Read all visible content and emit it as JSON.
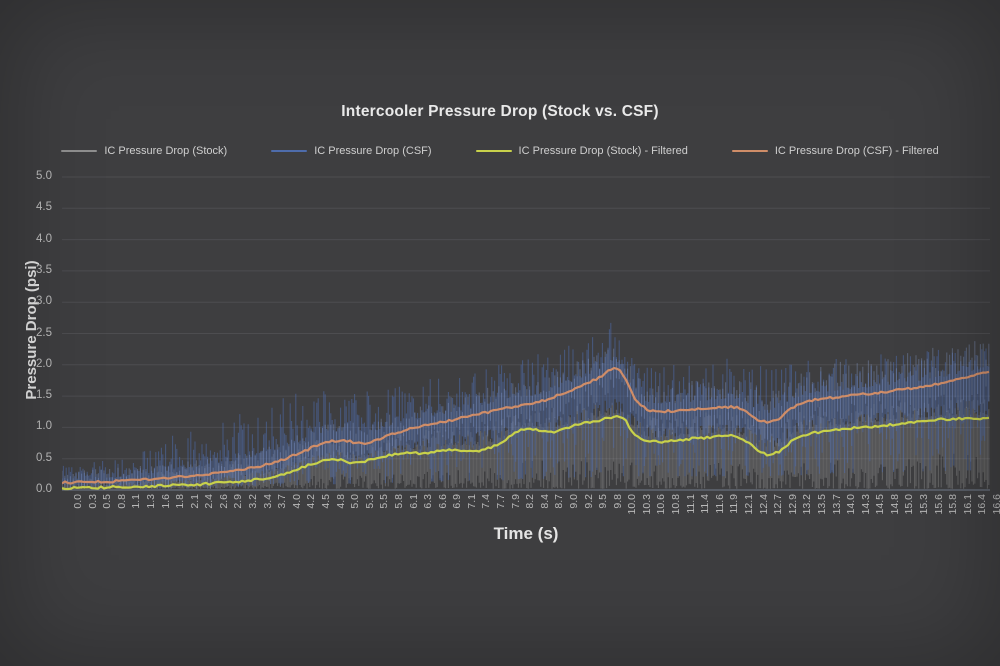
{
  "window": {
    "background": "#3e3e40"
  },
  "chart_data": {
    "type": "line",
    "title": "Intercooler Pressure Drop (Stock vs. CSF)",
    "xlabel": "Time (s)",
    "ylabel": "Pressure Drop (psi)",
    "ylim": [
      0.0,
      5.0
    ],
    "grid": true,
    "legend_position": "top",
    "ytick_labels": [
      "0.0",
      "0.5",
      "1.0",
      "1.5",
      "2.0",
      "2.5",
      "3.0",
      "3.5",
      "4.0",
      "4.5",
      "5.0"
    ],
    "xtick_labels": [
      "0.0",
      "0.3",
      "0.5",
      "0.8",
      "1.1",
      "1.3",
      "1.6",
      "1.8",
      "2.1",
      "2.4",
      "2.6",
      "2.9",
      "3.2",
      "3.4",
      "3.7",
      "4.0",
      "4.2",
      "4.5",
      "4.8",
      "5.0",
      "5.3",
      "5.5",
      "5.8",
      "6.1",
      "6.3",
      "6.6",
      "6.9",
      "7.1",
      "7.4",
      "7.7",
      "7.9",
      "8.2",
      "8.4",
      "8.7",
      "9.0",
      "9.2",
      "9.5",
      "9.8",
      "10.0",
      "10.3",
      "10.6",
      "10.8",
      "11.1",
      "11.4",
      "11.6",
      "11.9",
      "12.1",
      "12.4",
      "12.7",
      "12.9",
      "13.2",
      "13.5",
      "13.7",
      "14.0",
      "14.3",
      "14.5",
      "14.8",
      "15.0",
      "15.3",
      "15.6",
      "15.8",
      "16.1",
      "16.4",
      "16.6"
    ],
    "colors": {
      "background": "#3e3e40",
      "gridline": "#4d4d50",
      "axis_line": "#68707e",
      "title_text": "#e9e9e9",
      "tick_text": "#bdbdbd"
    },
    "series": [
      {
        "name": "IC Pressure Drop (Stock)",
        "color": "#8f8f8f",
        "style": "raw-noise",
        "baseline": "IC Pressure Drop (Stock) - Filtered",
        "envelope_hi": [
          [
            0,
            0.15
          ],
          [
            1,
            0.2
          ],
          [
            2,
            0.35
          ],
          [
            3,
            0.5
          ],
          [
            4,
            0.7
          ],
          [
            4.6,
            0.8
          ],
          [
            5,
            0.8
          ],
          [
            5.5,
            0.85
          ],
          [
            6,
            0.9
          ],
          [
            6.5,
            0.95
          ],
          [
            7,
            1.0
          ],
          [
            7.5,
            1.05
          ],
          [
            8,
            1.2
          ],
          [
            8.5,
            1.25
          ],
          [
            9,
            1.3
          ],
          [
            9.5,
            1.35
          ],
          [
            9.9,
            1.45
          ],
          [
            10.3,
            1.2
          ],
          [
            11,
            1.15
          ],
          [
            11.5,
            1.2
          ],
          [
            12,
            1.25
          ],
          [
            12.5,
            1.1
          ],
          [
            13,
            1.2
          ],
          [
            13.5,
            1.3
          ],
          [
            14,
            1.3
          ],
          [
            14.5,
            1.35
          ],
          [
            15,
            1.4
          ],
          [
            15.5,
            1.4
          ],
          [
            16,
            1.45
          ],
          [
            16.7,
            1.45
          ]
        ],
        "envelope_lo": [
          [
            0,
            0.02
          ],
          [
            16.7,
            0.02
          ]
        ]
      },
      {
        "name": "IC Pressure Drop (CSF)",
        "color": "#4e6cab",
        "highlight": "#8ba3d4",
        "style": "raw-noise",
        "baseline": "IC Pressure Drop (CSF) - Filtered",
        "envelope_hi": [
          [
            0,
            0.45
          ],
          [
            1,
            0.5
          ],
          [
            2,
            0.85
          ],
          [
            3,
            1.2
          ],
          [
            3.6,
            1.45
          ],
          [
            4.2,
            1.5
          ],
          [
            5,
            1.55
          ],
          [
            5.5,
            1.6
          ],
          [
            6,
            1.65
          ],
          [
            6.5,
            1.7
          ],
          [
            7,
            1.8
          ],
          [
            7.5,
            1.95
          ],
          [
            8,
            2.05
          ],
          [
            8.5,
            2.1
          ],
          [
            9,
            2.2
          ],
          [
            9.5,
            2.45
          ],
          [
            9.8,
            2.7
          ],
          [
            10,
            2.5
          ],
          [
            10.3,
            2.0
          ],
          [
            11,
            1.95
          ],
          [
            11.5,
            2.0
          ],
          [
            12,
            2.05
          ],
          [
            12.5,
            1.9
          ],
          [
            13,
            2.0
          ],
          [
            13.5,
            2.1
          ],
          [
            14,
            2.05
          ],
          [
            14.5,
            2.1
          ],
          [
            15,
            2.15
          ],
          [
            15.5,
            2.2
          ],
          [
            16,
            2.25
          ],
          [
            16.7,
            2.3
          ]
        ],
        "envelope_lo": [
          [
            0,
            0.02
          ],
          [
            2,
            0.03
          ],
          [
            4,
            0.05
          ],
          [
            6,
            0.1
          ],
          [
            8,
            0.15
          ],
          [
            10,
            0.2
          ],
          [
            12,
            0.2
          ],
          [
            14,
            0.25
          ],
          [
            16.7,
            0.3
          ]
        ]
      },
      {
        "name": "IC Pressure Drop (Stock) - Filtered",
        "color": "#c8d14b",
        "style": "line",
        "points": [
          [
            0,
            0.03
          ],
          [
            0.3,
            0.03
          ],
          [
            0.6,
            0.04
          ],
          [
            0.9,
            0.05
          ],
          [
            1.2,
            0.05
          ],
          [
            1.5,
            0.06
          ],
          [
            1.8,
            0.07
          ],
          [
            2.1,
            0.08
          ],
          [
            2.4,
            0.09
          ],
          [
            2.7,
            0.11
          ],
          [
            3.0,
            0.13
          ],
          [
            3.3,
            0.15
          ],
          [
            3.6,
            0.18
          ],
          [
            3.9,
            0.24
          ],
          [
            4.2,
            0.33
          ],
          [
            4.4,
            0.41
          ],
          [
            4.6,
            0.46
          ],
          [
            4.8,
            0.5
          ],
          [
            5.0,
            0.47
          ],
          [
            5.2,
            0.43
          ],
          [
            5.4,
            0.46
          ],
          [
            5.6,
            0.52
          ],
          [
            5.8,
            0.55
          ],
          [
            6.0,
            0.57
          ],
          [
            6.2,
            0.6
          ],
          [
            6.4,
            0.58
          ],
          [
            6.6,
            0.6
          ],
          [
            6.8,
            0.63
          ],
          [
            7.0,
            0.65
          ],
          [
            7.2,
            0.63
          ],
          [
            7.4,
            0.62
          ],
          [
            7.6,
            0.66
          ],
          [
            7.8,
            0.72
          ],
          [
            8.0,
            0.85
          ],
          [
            8.2,
            0.95
          ],
          [
            8.4,
            0.97
          ],
          [
            8.6,
            0.94
          ],
          [
            8.8,
            0.92
          ],
          [
            9.0,
            0.98
          ],
          [
            9.2,
            1.04
          ],
          [
            9.4,
            1.08
          ],
          [
            9.6,
            1.11
          ],
          [
            9.8,
            1.15
          ],
          [
            10.0,
            1.18
          ],
          [
            10.1,
            1.12
          ],
          [
            10.2,
            0.98
          ],
          [
            10.3,
            0.85
          ],
          [
            10.5,
            0.78
          ],
          [
            10.7,
            0.77
          ],
          [
            10.9,
            0.78
          ],
          [
            11.1,
            0.8
          ],
          [
            11.3,
            0.82
          ],
          [
            11.5,
            0.83
          ],
          [
            11.7,
            0.85
          ],
          [
            11.9,
            0.87
          ],
          [
            12.1,
            0.86
          ],
          [
            12.3,
            0.78
          ],
          [
            12.5,
            0.62
          ],
          [
            12.7,
            0.55
          ],
          [
            12.9,
            0.62
          ],
          [
            13.1,
            0.78
          ],
          [
            13.3,
            0.87
          ],
          [
            13.5,
            0.91
          ],
          [
            13.7,
            0.94
          ],
          [
            13.9,
            0.96
          ],
          [
            14.1,
            0.98
          ],
          [
            14.3,
            1.0
          ],
          [
            14.5,
            1.01
          ],
          [
            14.7,
            1.02
          ],
          [
            14.9,
            1.04
          ],
          [
            15.1,
            1.06
          ],
          [
            15.3,
            1.08
          ],
          [
            15.5,
            1.1
          ],
          [
            15.7,
            1.12
          ],
          [
            15.9,
            1.13
          ],
          [
            16.1,
            1.14
          ],
          [
            16.3,
            1.15
          ],
          [
            16.5,
            1.14
          ],
          [
            16.7,
            1.15
          ]
        ]
      },
      {
        "name": "IC Pressure Drop (CSF) - Filtered",
        "color": "#cf8d68",
        "style": "line",
        "points": [
          [
            0,
            0.12
          ],
          [
            0.3,
            0.12
          ],
          [
            0.6,
            0.13
          ],
          [
            0.9,
            0.14
          ],
          [
            1.2,
            0.15
          ],
          [
            1.5,
            0.17
          ],
          [
            1.8,
            0.19
          ],
          [
            2.1,
            0.21
          ],
          [
            2.4,
            0.24
          ],
          [
            2.7,
            0.27
          ],
          [
            3.0,
            0.3
          ],
          [
            3.3,
            0.34
          ],
          [
            3.6,
            0.4
          ],
          [
            3.9,
            0.48
          ],
          [
            4.2,
            0.58
          ],
          [
            4.5,
            0.7
          ],
          [
            4.8,
            0.78
          ],
          [
            5.0,
            0.8
          ],
          [
            5.2,
            0.76
          ],
          [
            5.4,
            0.75
          ],
          [
            5.6,
            0.8
          ],
          [
            5.8,
            0.86
          ],
          [
            6.0,
            0.92
          ],
          [
            6.2,
            0.97
          ],
          [
            6.4,
            1.02
          ],
          [
            6.6,
            1.06
          ],
          [
            6.8,
            1.09
          ],
          [
            7.0,
            1.12
          ],
          [
            7.2,
            1.16
          ],
          [
            7.4,
            1.2
          ],
          [
            7.6,
            1.24
          ],
          [
            7.8,
            1.28
          ],
          [
            8.0,
            1.32
          ],
          [
            8.2,
            1.35
          ],
          [
            8.4,
            1.38
          ],
          [
            8.6,
            1.42
          ],
          [
            8.8,
            1.48
          ],
          [
            9.0,
            1.55
          ],
          [
            9.2,
            1.62
          ],
          [
            9.4,
            1.7
          ],
          [
            9.6,
            1.78
          ],
          [
            9.8,
            1.9
          ],
          [
            9.9,
            1.95
          ],
          [
            10.0,
            1.92
          ],
          [
            10.1,
            1.8
          ],
          [
            10.2,
            1.6
          ],
          [
            10.3,
            1.42
          ],
          [
            10.5,
            1.28
          ],
          [
            10.7,
            1.25
          ],
          [
            10.9,
            1.26
          ],
          [
            11.1,
            1.27
          ],
          [
            11.3,
            1.28
          ],
          [
            11.5,
            1.3
          ],
          [
            11.7,
            1.32
          ],
          [
            11.9,
            1.33
          ],
          [
            12.1,
            1.32
          ],
          [
            12.3,
            1.25
          ],
          [
            12.5,
            1.12
          ],
          [
            12.7,
            1.08
          ],
          [
            12.9,
            1.15
          ],
          [
            13.1,
            1.3
          ],
          [
            13.3,
            1.4
          ],
          [
            13.5,
            1.44
          ],
          [
            13.7,
            1.46
          ],
          [
            13.9,
            1.48
          ],
          [
            14.1,
            1.5
          ],
          [
            14.3,
            1.52
          ],
          [
            14.5,
            1.54
          ],
          [
            14.7,
            1.56
          ],
          [
            14.9,
            1.58
          ],
          [
            15.1,
            1.61
          ],
          [
            15.3,
            1.63
          ],
          [
            15.5,
            1.66
          ],
          [
            15.7,
            1.69
          ],
          [
            15.9,
            1.72
          ],
          [
            16.1,
            1.76
          ],
          [
            16.3,
            1.8
          ],
          [
            16.5,
            1.85
          ],
          [
            16.7,
            1.88
          ]
        ]
      }
    ]
  }
}
